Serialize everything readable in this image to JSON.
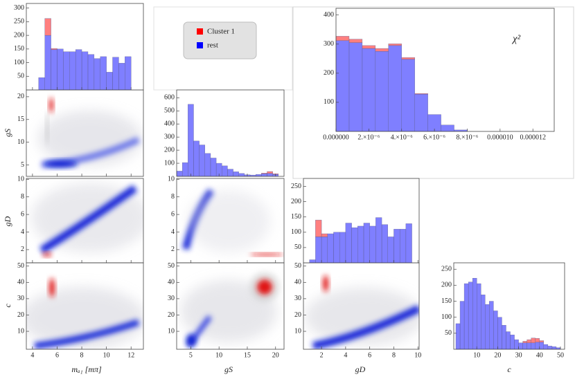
{
  "axes": [
    {
      "label": "mₐ₁ [mπ]",
      "lim": [
        3.5,
        13
      ],
      "ticks": [
        4,
        6,
        8,
        10,
        12
      ]
    },
    {
      "label": "gS",
      "lim": [
        2.5,
        21.5
      ],
      "ticks": [
        5,
        10,
        15,
        20
      ]
    },
    {
      "label": "gD",
      "lim": [
        0.5,
        10.1
      ],
      "ticks": [
        2,
        4,
        6,
        8,
        10
      ]
    },
    {
      "label": "c",
      "lim": [
        -1,
        52
      ],
      "ticks": [
        10,
        20,
        30,
        40,
        50
      ]
    }
  ],
  "chart_data": [
    {
      "type": "histogram",
      "bins": [
        4.5,
        5,
        5.5,
        6,
        6.5,
        7,
        7.5,
        8,
        8.5,
        9,
        9.5,
        10,
        10.5,
        11,
        11.5,
        12
      ],
      "series": [
        {
          "name": "Cluster 1",
          "color": "#ff0000",
          "values": [
            0,
            62,
            4,
            0,
            0,
            0,
            0,
            0,
            0,
            0,
            0,
            0,
            0,
            0,
            0
          ]
        },
        {
          "name": "rest",
          "color": "#0000ff",
          "values": [
            45,
            200,
            148,
            150,
            140,
            140,
            148,
            140,
            130,
            115,
            122,
            65,
            120,
            98,
            122
          ]
        }
      ],
      "ylim": [
        0,
        317
      ],
      "yticks": [
        50,
        100,
        150,
        200,
        250,
        300
      ]
    },
    {
      "type": "histogram",
      "bins": [
        2.5,
        3.5,
        4.5,
        5.5,
        6.5,
        7.5,
        8.5,
        9.5,
        10.5,
        11.5,
        12.5,
        13.5,
        14.5,
        15.5,
        16.5,
        17.5,
        18.5,
        19.5,
        20.5
      ],
      "series": [
        {
          "color": "#ff0000",
          "values": [
            0,
            0,
            0,
            0,
            0,
            0,
            0,
            0,
            0,
            0,
            0,
            0,
            0,
            0,
            0,
            5,
            15,
            5
          ]
        },
        {
          "color": "#0000ff",
          "values": [
            40,
            105,
            550,
            270,
            240,
            175,
            140,
            100,
            80,
            55,
            35,
            22,
            12,
            10,
            15,
            20,
            22,
            15
          ]
        }
      ],
      "ylim": [
        0,
        660
      ],
      "yticks": [
        100,
        200,
        300,
        400,
        500,
        600
      ]
    },
    {
      "type": "histogram",
      "bins": [
        1,
        1.5,
        2,
        2.5,
        3,
        3.5,
        4,
        4.5,
        5,
        5.5,
        6,
        6.5,
        7,
        7.5,
        8,
        8.5,
        9,
        9.5
      ],
      "series": [
        {
          "color": "#ff0000",
          "values": [
            0,
            55,
            10,
            0,
            0,
            0,
            0,
            0,
            0,
            0,
            0,
            0,
            0,
            0,
            0,
            0,
            0
          ]
        },
        {
          "color": "#0000ff",
          "values": [
            10,
            85,
            85,
            95,
            100,
            100,
            130,
            115,
            120,
            130,
            120,
            148,
            125,
            85,
            110,
            110,
            128
          ]
        }
      ],
      "ylim": [
        0,
        276
      ],
      "yticks": [
        50,
        100,
        150,
        200,
        250
      ]
    },
    {
      "type": "histogram",
      "bins": [
        0,
        2,
        4,
        6,
        8,
        10,
        12,
        14,
        16,
        18,
        20,
        22,
        24,
        26,
        28,
        30,
        32,
        34,
        36,
        38,
        40,
        42,
        44,
        46,
        48,
        50
      ],
      "series": [
        {
          "color": "#ff0000",
          "values": [
            0,
            0,
            0,
            0,
            0,
            0,
            0,
            0,
            0,
            0,
            0,
            0,
            0,
            0,
            0,
            0,
            5,
            10,
            15,
            12,
            5,
            0,
            0,
            0,
            0
          ]
        },
        {
          "color": "#0000ff",
          "values": [
            80,
            150,
            205,
            210,
            222,
            205,
            170,
            140,
            150,
            120,
            100,
            75,
            55,
            45,
            30,
            20,
            20,
            20,
            20,
            22,
            22,
            15,
            10,
            8,
            5
          ]
        }
      ],
      "ylim": [
        0,
        270
      ],
      "yticks": [
        50,
        100,
        150,
        200,
        250
      ]
    },
    {
      "type": "histogram",
      "annotation": "χ²",
      "bins": [
        0,
        8e-07,
        1.6e-06,
        2.4e-06,
        3.2e-06,
        4e-06,
        4.8e-06,
        5.6e-06,
        6.4e-06,
        7.2e-06,
        8e-06
      ],
      "series": [
        {
          "color": "#ff0000",
          "values": [
            15,
            12,
            10,
            10,
            6,
            6,
            2,
            0,
            0,
            0
          ]
        },
        {
          "color": "#0000ff",
          "values": [
            312,
            305,
            285,
            275,
            295,
            248,
            128,
            58,
            22,
            5
          ]
        }
      ],
      "xlim": [
        0,
        1.33e-05
      ],
      "xticks": [
        {
          "value": 0,
          "label": "0.000000"
        },
        {
          "value": 2e-06,
          "label": "2.×10⁻⁶"
        },
        {
          "value": 4e-06,
          "label": "4.×10⁻⁶"
        },
        {
          "value": 6e-06,
          "label": "6.×10⁻⁶"
        },
        {
          "value": 8e-06,
          "label": "8.×10⁻⁶"
        },
        {
          "value": 1e-05,
          "label": "0.000010"
        },
        {
          "value": 1.2e-05,
          "label": "0.000012"
        }
      ],
      "ylim": [
        0,
        423
      ],
      "yticks": [
        100,
        200,
        300,
        400
      ]
    }
  ]
}
